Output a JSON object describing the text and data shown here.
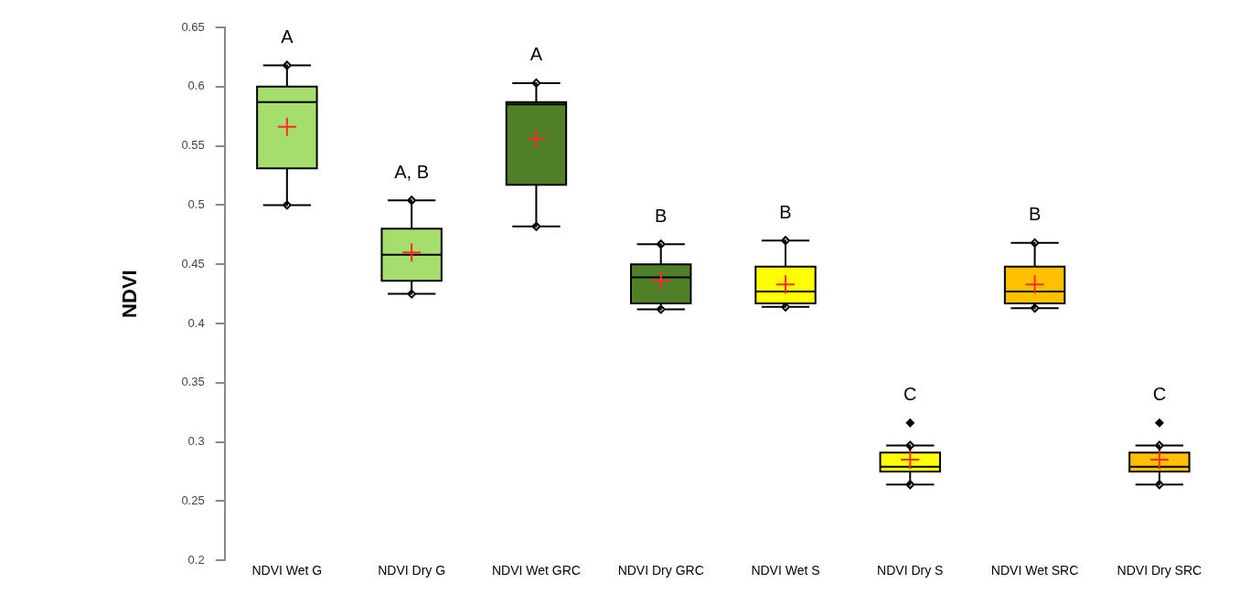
{
  "chart_data": {
    "type": "box",
    "ylabel": "NDVI",
    "categories": [
      "NDVI Wet G",
      "NDVI Dry G",
      "NDVI Wet GRC",
      "NDVI Dry GRC",
      "NDVI Wet S",
      "NDVI Dry S",
      "NDVI Wet SRC",
      "NDVI Dry SRC"
    ],
    "colors": [
      "#a6de6e",
      "#a6de6e",
      "#4f7f26",
      "#4f7f26",
      "#ffff00",
      "#ffff00",
      "#ffc000",
      "#ffc000"
    ],
    "boxes": [
      {
        "low": 0.5,
        "q1": 0.531,
        "median": 0.587,
        "q3": 0.6,
        "high": 0.618,
        "mean": 0.566
      },
      {
        "low": 0.425,
        "q1": 0.436,
        "median": 0.458,
        "q3": 0.48,
        "high": 0.504,
        "mean": 0.46
      },
      {
        "low": 0.482,
        "q1": 0.517,
        "median": 0.585,
        "q3": 0.587,
        "high": 0.603,
        "mean": 0.556
      },
      {
        "low": 0.412,
        "q1": 0.417,
        "median": 0.439,
        "q3": 0.45,
        "high": 0.467,
        "mean": 0.436
      },
      {
        "low": 0.414,
        "q1": 0.417,
        "median": 0.427,
        "q3": 0.448,
        "high": 0.47,
        "mean": 0.433
      },
      {
        "low": 0.264,
        "q1": 0.275,
        "median": 0.279,
        "q3": 0.291,
        "high": 0.297,
        "mean": 0.285,
        "outliers": [
          0.316
        ]
      },
      {
        "low": 0.413,
        "q1": 0.417,
        "median": 0.427,
        "q3": 0.448,
        "high": 0.468,
        "mean": 0.433
      },
      {
        "low": 0.264,
        "q1": 0.275,
        "median": 0.279,
        "q3": 0.291,
        "high": 0.297,
        "mean": 0.285,
        "outliers": [
          0.316
        ]
      }
    ],
    "ylim": [
      0.2,
      0.65
    ],
    "yticks": [
      0.2,
      0.25,
      0.3,
      0.35,
      0.4,
      0.45,
      0.5,
      0.55,
      0.6,
      0.65
    ],
    "grid": false,
    "legend": false,
    "annotations": [
      "A",
      "A, B",
      "A",
      "B",
      "B",
      "C",
      "B",
      "C"
    ]
  }
}
